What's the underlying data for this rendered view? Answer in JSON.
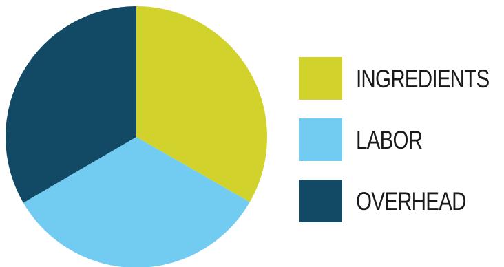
{
  "chart_data": {
    "type": "pie",
    "title": "",
    "categories": [
      "INGREDIENTS",
      "LABOR",
      "OVERHEAD"
    ],
    "values": [
      33.3,
      33.3,
      33.4
    ],
    "colors": [
      "#d2d22c",
      "#72ccf2",
      "#124a66"
    ],
    "start_angle_deg": 0,
    "direction": "clockwise",
    "legend_position": "right"
  },
  "legend": {
    "items": [
      {
        "label": "INGREDIENTS",
        "color": "#d2d22c"
      },
      {
        "label": "LABOR",
        "color": "#72ccf2"
      },
      {
        "label": "OVERHEAD",
        "color": "#124a66"
      }
    ]
  }
}
